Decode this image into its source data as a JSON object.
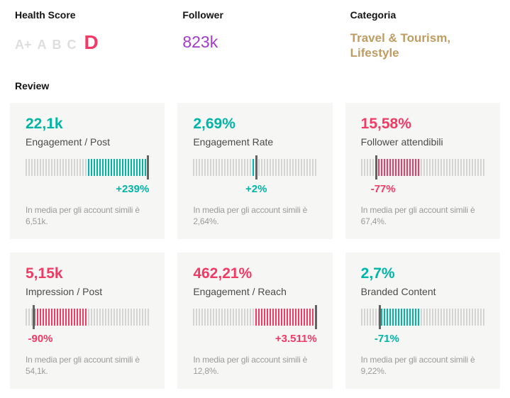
{
  "colors": {
    "teal": "#00b5a6",
    "pink": "#f23a64",
    "purple": "#a43bcb",
    "gold": "#bf9c61",
    "inactive_grade": "#dedede",
    "tick_gray": "#d4d4d4",
    "marker": "#636363",
    "card_bg": "#f6f6f5",
    "label_dark": "#4b4b4b",
    "note_gray": "#9b9b9b"
  },
  "header": {
    "health_score": {
      "label": "Health Score",
      "grades": [
        "A+",
        "A",
        "B",
        "C",
        "D"
      ],
      "active_grade": "D"
    },
    "follower": {
      "label": "Follower",
      "value": "823k"
    },
    "categoria": {
      "label": "Categoria",
      "value": "Travel & Tourism, Lifestyle"
    }
  },
  "review": {
    "label": "Review",
    "cards": [
      {
        "value": "22,1k",
        "metric": "Engagement / Post",
        "delta": "+239%",
        "tone": "teal",
        "note": "In media per gli account simili è\n6,51k.",
        "gauge": {
          "colored_start": 0.51,
          "colored_end": 1.0,
          "marker": 1.0,
          "delta_align": "right"
        }
      },
      {
        "value": "2,69%",
        "metric": "Engagement Rate",
        "delta": "+2%",
        "tone": "teal",
        "note": "In media per gli account simili è\n2,64%.",
        "gauge": {
          "colored_start": 0.48,
          "colored_end": 0.52,
          "marker": 0.51,
          "delta_align": "center"
        }
      },
      {
        "value": "15,58%",
        "metric": "Follower attendibili",
        "delta": "-77%",
        "tone": "pink",
        "note": "In media per gli account simili è\n67,4%.",
        "gauge": {
          "colored_start": 0.13,
          "colored_end": 0.48,
          "marker": 0.12,
          "delta_align": "left"
        }
      },
      {
        "value": "5,15k",
        "metric": "Impression / Post",
        "delta": "-90%",
        "tone": "pink",
        "note": "In media per gli account simili è\n54,1k.",
        "gauge": {
          "colored_start": 0.07,
          "colored_end": 0.5,
          "marker": 0.06,
          "delta_align": "left"
        }
      },
      {
        "value": "462,21%",
        "metric": "Engagement / Reach",
        "delta": "+3.511%",
        "tone": "pink",
        "note": "In media per gli account simili è\n12,8%.",
        "gauge": {
          "colored_start": 0.5,
          "colored_end": 1.0,
          "marker": 1.0,
          "delta_align": "right"
        }
      },
      {
        "value": "2,7%",
        "metric": "Branded Content",
        "delta": "-71%",
        "tone": "teal",
        "note": "In media per gli account simili è\n9,22%.",
        "gauge": {
          "colored_start": 0.16,
          "colored_end": 0.47,
          "marker": 0.15,
          "delta_align": "left"
        }
      }
    ]
  }
}
